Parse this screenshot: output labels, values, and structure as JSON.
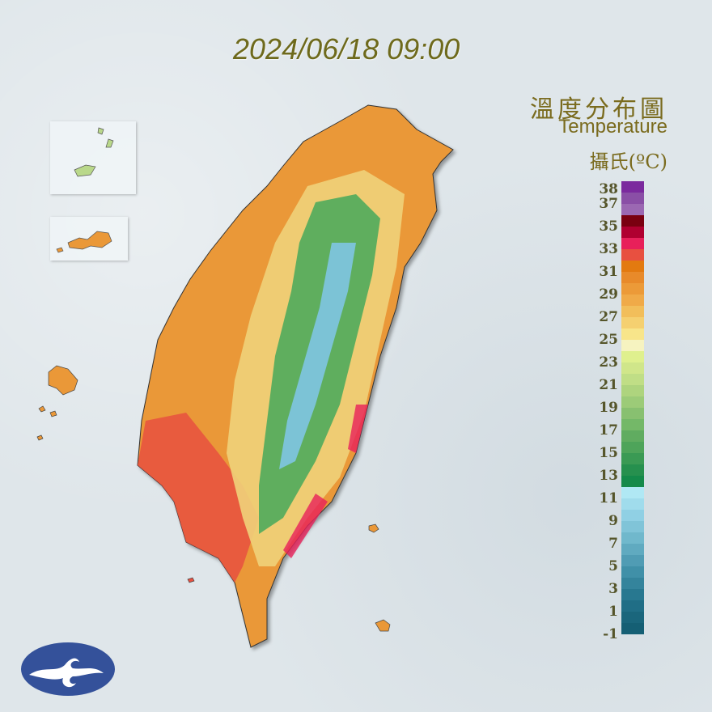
{
  "timestamp": "2024/06/18 09:00",
  "title": {
    "zh": "溫度分布圖",
    "en": "Temperature",
    "unit": "攝氏(ºC)"
  },
  "legend": {
    "labels": [
      "38",
      "37",
      "35",
      "33",
      "31",
      "29",
      "27",
      "25",
      "23",
      "21",
      "19",
      "17",
      "15",
      "13",
      "11",
      "9",
      "7",
      "5",
      "3",
      "1",
      "-1"
    ],
    "label_values": [
      38,
      37,
      35,
      33,
      31,
      29,
      27,
      25,
      23,
      21,
      19,
      17,
      15,
      13,
      11,
      9,
      7,
      5,
      3,
      1,
      -1
    ],
    "range": [
      -1,
      38
    ],
    "colors": [
      "#7b2a9e",
      "#8a4fa6",
      "#9b68b2",
      "#7a0010",
      "#b00030",
      "#e8205a",
      "#e85040",
      "#e37a10",
      "#e88a2a",
      "#ec9a38",
      "#f0aa48",
      "#f2be5a",
      "#f5d070",
      "#f8e58a",
      "#f6f3c0",
      "#dff08e",
      "#d0e68a",
      "#c0de86",
      "#aed47e",
      "#9ccb78",
      "#88c070",
      "#74b868",
      "#60ac60",
      "#4ea45a",
      "#3a9a54",
      "#26904e",
      "#148a4a",
      "#b0e8f4",
      "#a0dcec",
      "#90d0e4",
      "#80c4d8",
      "#70b8cc",
      "#60aac0",
      "#509cb4",
      "#4090a8",
      "#34849c",
      "#287890",
      "#206e86",
      "#1a667c",
      "#155f74"
    ]
  },
  "map_colors": {
    "lowland": "#ea9838",
    "hot": "#e85040",
    "hottest": "#e8205a",
    "foothill": "#f0d27a",
    "mountain": "#5fae5e",
    "peak": "#7cc3d6",
    "background": "#dfe6ea"
  },
  "logo": {
    "color": "#34519a"
  }
}
